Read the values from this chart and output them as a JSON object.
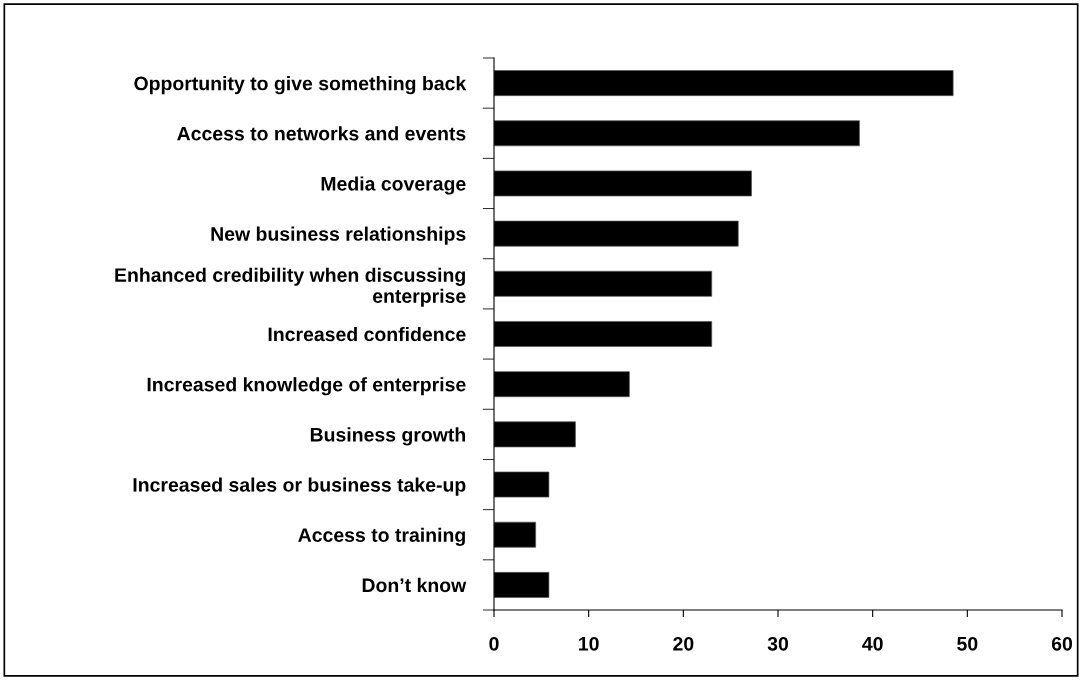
{
  "chart_data": {
    "type": "bar",
    "orientation": "horizontal",
    "categories": [
      "Opportunity to give something back",
      "Access to networks and events",
      "Media coverage",
      "New business relationships",
      "Enhanced credibility when discussing\nenterprise",
      "Increased confidence",
      "Increased knowledge of enterprise",
      "Business growth",
      "Increased sales or business take-up",
      "Access to training",
      "Don’t know"
    ],
    "values": [
      48.5,
      38.6,
      27.2,
      25.8,
      23.0,
      23.0,
      14.3,
      8.6,
      5.8,
      4.4,
      5.8
    ],
    "color": "#000000",
    "xlim": [
      0,
      60
    ],
    "xticks": [
      0,
      10,
      20,
      30,
      40,
      50,
      60
    ],
    "grid": false
  }
}
